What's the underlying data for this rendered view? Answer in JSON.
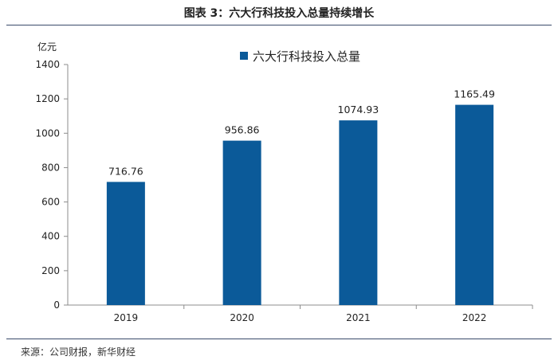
{
  "figure": {
    "title": "图表 3：六大行科技投入总量持续增长",
    "source": "来源：公司财报，新华财经"
  },
  "chart_data": {
    "type": "bar",
    "categories": [
      "2019",
      "2020",
      "2021",
      "2022"
    ],
    "series": [
      {
        "name": "六大行科技投入总量",
        "values": [
          716.76,
          956.86,
          1074.93,
          1165.49
        ]
      }
    ],
    "data_labels": [
      "716.76",
      "956.86",
      "1074.93",
      "1165.49"
    ],
    "yunit": "亿元",
    "ylim": [
      0,
      1400
    ],
    "yticks": [
      0,
      200,
      400,
      600,
      800,
      1000,
      1200,
      1400
    ],
    "legend_position": "top-center",
    "grid": false,
    "bar_color": "#0b5a99"
  }
}
